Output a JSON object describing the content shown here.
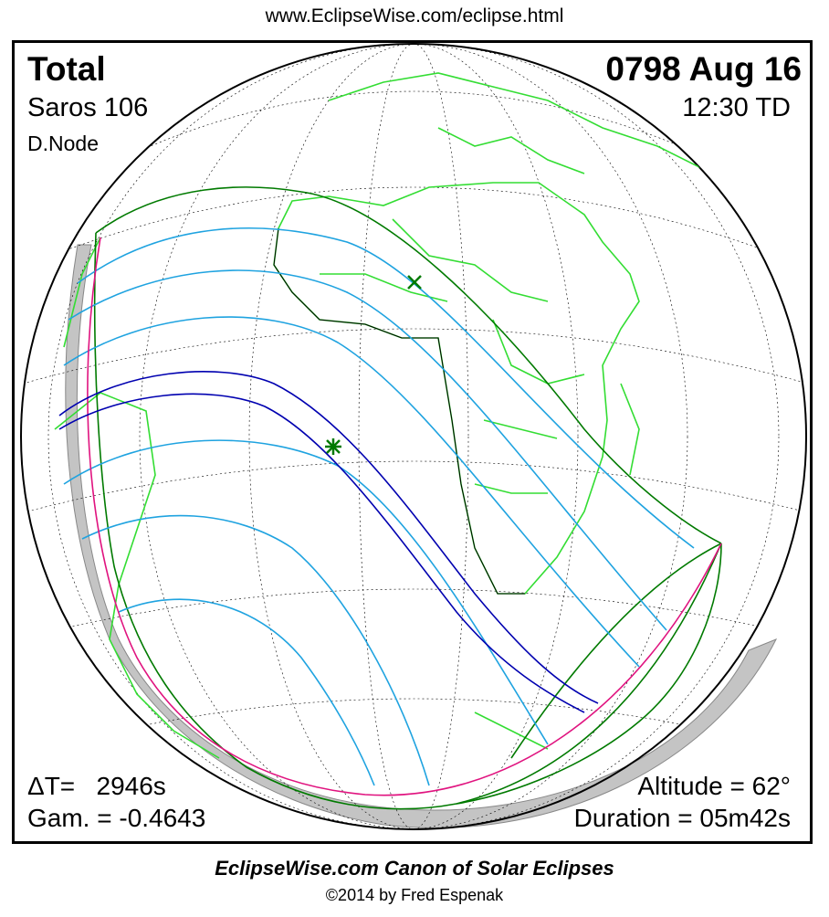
{
  "header": {
    "url": "www.EclipseWise.com/eclipse.html"
  },
  "eclipse": {
    "type": "Total",
    "date": "0798 Aug 16",
    "saros": "Saros 106",
    "time": "12:30 TD",
    "node": "D.Node"
  },
  "stats": {
    "delta_t": "ΔT=   2946s",
    "gamma": "Gam. = -0.4643",
    "altitude": "Altitude = 62°",
    "duration": "Duration = 05m42s"
  },
  "footer": {
    "title": "EclipseWise.com Canon of Solar Eclipses",
    "copyright": "©2014 by Fred Espenak"
  },
  "colors": {
    "umbral_path": "#0000b0",
    "penumbral_lines": "#1fa3e0",
    "penumbral_limits": "#007a00",
    "sunrise_sunset": "#e0137f",
    "landmass": "#33dd33",
    "night_side": "#c0c0c0"
  },
  "icons": {
    "greatest_eclipse": "star-marker-icon",
    "sub_solar_point": "x-marker-icon"
  }
}
